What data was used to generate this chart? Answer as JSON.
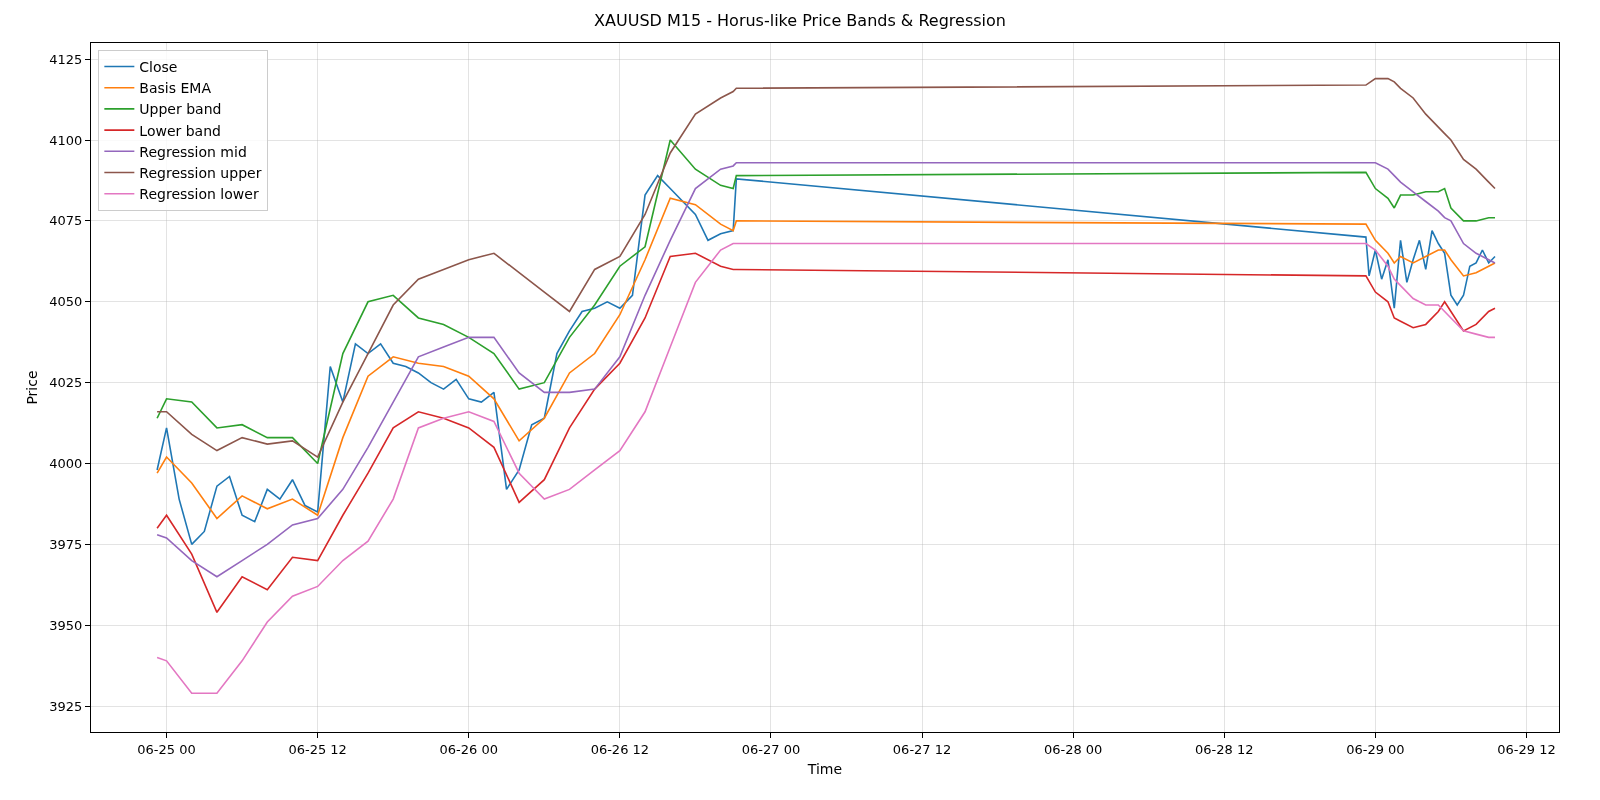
{
  "chart_data": {
    "type": "line",
    "title": "XAUUSD M15 - Horus-like Price Bands & Regression",
    "xlabel": "Time",
    "ylabel": "Price",
    "x": [
      "--06-24T23:15",
      "--06-25T00:00",
      "--06-25T02:00",
      "--06-25T04:00",
      "--06-25T06:00",
      "--06-25T08:00",
      "--06-25T10:00",
      "--06-25T12:00",
      "--06-25T14:00",
      "--06-25T16:00",
      "--06-25T18:00",
      "--06-25T20:00",
      "--06-25T22:00",
      "--06-26T00:00",
      "--06-26T02:00",
      "--06-26T04:00",
      "--06-26T06:00",
      "--06-26T08:00",
      "--06-26T10:00",
      "--06-26T12:00",
      "--06-26T14:00",
      "--06-26T16:00",
      "--06-26T18:00",
      "--06-26T20:00",
      "--06-26T21:00",
      "--06-26T21:15",
      "--06-28T23:15",
      "--06-29T00:00",
      "--06-29T01:00",
      "--06-29T01:30",
      "--06-29T02:00",
      "--06-29T03:00",
      "--06-29T04:00",
      "--06-29T05:00",
      "--06-29T05:30",
      "--06-29T06:00",
      "--06-29T07:00",
      "--06-29T08:00",
      "--06-29T09:00",
      "--06-29T09:30"
    ],
    "series": [
      {
        "name": "Close",
        "color": "#1f77b4",
        "x": [
          "--06-24T23:15",
          "--06-25T00:00",
          "--06-25T01:00",
          "--06-25T02:00",
          "--06-25T03:00",
          "--06-25T04:00",
          "--06-25T05:00",
          "--06-25T06:00",
          "--06-25T07:00",
          "--06-25T08:00",
          "--06-25T09:00",
          "--06-25T10:00",
          "--06-25T11:00",
          "--06-25T12:00",
          "--06-25T13:00",
          "--06-25T14:00",
          "--06-25T15:00",
          "--06-25T16:00",
          "--06-25T17:00",
          "--06-25T18:00",
          "--06-25T19:00",
          "--06-25T20:00",
          "--06-25T21:00",
          "--06-25T22:00",
          "--06-25T23:00",
          "--06-26T00:00",
          "--06-26T01:00",
          "--06-26T02:00",
          "--06-26T03:00",
          "--06-26T04:00",
          "--06-26T05:00",
          "--06-26T06:00",
          "--06-26T07:00",
          "--06-26T08:00",
          "--06-26T09:00",
          "--06-26T10:00",
          "--06-26T11:00",
          "--06-26T12:00",
          "--06-26T13:00",
          "--06-26T14:00",
          "--06-26T15:00",
          "--06-26T16:00",
          "--06-26T17:00",
          "--06-26T18:00",
          "--06-26T19:00",
          "--06-26T20:00",
          "--06-26T21:00",
          "--06-26T21:15",
          "--06-28T23:15",
          "--06-28T23:30",
          "--06-29T00:00",
          "--06-29T00:30",
          "--06-29T01:00",
          "--06-29T01:30",
          "--06-29T02:00",
          "--06-29T02:30",
          "--06-29T03:00",
          "--06-29T03:30",
          "--06-29T04:00",
          "--06-29T04:30",
          "--06-29T05:00",
          "--06-29T05:30",
          "--06-29T06:00",
          "--06-29T06:30",
          "--06-29T07:00",
          "--06-29T07:30",
          "--06-29T08:00",
          "--06-29T08:30",
          "--06-29T09:00",
          "--06-29T09:30"
        ],
        "values": [
          3998,
          4011,
          3989,
          3975,
          3979,
          3993,
          3996,
          3984,
          3982,
          3992,
          3989,
          3995,
          3987,
          3985,
          4030,
          4019,
          4037,
          4034,
          4037,
          4031,
          4030,
          4028,
          4025,
          4023,
          4026,
          4020,
          4019,
          4022,
          3992,
          3998,
          4012,
          4014,
          4034,
          4041,
          4047,
          4048,
          4050,
          4048,
          4052,
          4083,
          4089,
          4085,
          4081,
          4077,
          4069,
          4071,
          4072,
          4088,
          4070,
          4058,
          4066,
          4057,
          4063,
          4048,
          4069,
          4056,
          4063,
          4069,
          4060,
          4072,
          4068,
          4065,
          4052,
          4049,
          4052,
          4061,
          4062,
          4066,
          4062,
          4064
        ]
      },
      {
        "name": "Basis EMA",
        "color": "#ff7f0e",
        "values": [
          3997,
          4002,
          3994,
          3983,
          3990,
          3986,
          3989,
          3984,
          4008,
          4027,
          4033,
          4031,
          4030,
          4027,
          4020,
          4007,
          4014,
          4028,
          4034,
          4046,
          4063,
          4082,
          4080,
          4074,
          4072,
          4075,
          4074,
          4069,
          4065,
          4062,
          4064,
          4062,
          4064,
          4066,
          4066,
          4063,
          4058,
          4059,
          4061,
          4062
        ]
      },
      {
        "name": "Upper band",
        "color": "#2ca02c",
        "values": [
          4014,
          4020,
          4019,
          4011,
          4012,
          4008,
          4008,
          4000,
          4034,
          4050,
          4052,
          4045,
          4043,
          4039,
          4034,
          4023,
          4025,
          4039,
          4049,
          4061,
          4067,
          4100,
          4091,
          4086,
          4085,
          4089,
          4090,
          4085,
          4082,
          4079,
          4083,
          4083,
          4084,
          4084,
          4085,
          4079,
          4075,
          4075,
          4076,
          4076
        ]
      },
      {
        "name": "Lower band",
        "color": "#d62728",
        "values": [
          3980,
          3984,
          3972,
          3954,
          3965,
          3961,
          3971,
          3970,
          3984,
          3997,
          4011,
          4016,
          4014,
          4011,
          4005,
          3988,
          3995,
          4011,
          4023,
          4031,
          4045,
          4064,
          4065,
          4061,
          4060,
          4060,
          4058,
          4053,
          4050,
          4045,
          4044,
          4042,
          4043,
          4047,
          4050,
          4047,
          4041,
          4043,
          4047,
          4048
        ]
      },
      {
        "name": "Regression mid",
        "color": "#9467bd",
        "values": [
          3978,
          3977,
          3970,
          3965,
          3970,
          3975,
          3981,
          3983,
          3992,
          4005,
          4019,
          4033,
          4036,
          4039,
          4039,
          4028,
          4022,
          4022,
          4023,
          4033,
          4052,
          4069,
          4085,
          4091,
          4092,
          4093,
          4093,
          4093,
          4091,
          4089,
          4087,
          4084,
          4081,
          4078,
          4076,
          4075,
          4068,
          4065,
          4063,
          4062
        ]
      },
      {
        "name": "Regression upper",
        "color": "#8c564b",
        "values": [
          4016,
          4016,
          4009,
          4004,
          4008,
          4006,
          4007,
          4002,
          4019,
          4034,
          4049,
          4057,
          4060,
          4063,
          4065,
          4059,
          4053,
          4047,
          4060,
          4064,
          4077,
          4096,
          4108,
          4113,
          4115,
          4116,
          4117,
          4119,
          4119,
          4118,
          4116,
          4113,
          4108,
          4104,
          4102,
          4100,
          4094,
          4091,
          4087,
          4085
        ]
      },
      {
        "name": "Regression lower",
        "color": "#e377c2",
        "values": [
          3940,
          3939,
          3929,
          3929,
          3939,
          3951,
          3959,
          3962,
          3970,
          3976,
          3989,
          4011,
          4014,
          4016,
          4013,
          3997,
          3989,
          3992,
          3998,
          4004,
          4016,
          4036,
          4056,
          4066,
          4068,
          4068,
          4068,
          4066,
          4061,
          4057,
          4055,
          4051,
          4049,
          4049,
          4047,
          4045,
          4041,
          4040,
          4039,
          4039
        ]
      }
    ],
    "xlim": [
      "--06-24T18:00",
      "--06-29T14:35"
    ],
    "xticks": [
      {
        "value": "--06-25T00:00",
        "label": "06-25 00"
      },
      {
        "value": "--06-25T12:00",
        "label": "06-25 12"
      },
      {
        "value": "--06-26T00:00",
        "label": "06-26 00"
      },
      {
        "value": "--06-26T12:00",
        "label": "06-26 12"
      },
      {
        "value": "--06-27T00:00",
        "label": "06-27 00"
      },
      {
        "value": "--06-27T12:00",
        "label": "06-27 12"
      },
      {
        "value": "--06-28T00:00",
        "label": "06-28 00"
      },
      {
        "value": "--06-28T12:00",
        "label": "06-28 12"
      },
      {
        "value": "--06-29T00:00",
        "label": "06-29 00"
      },
      {
        "value": "--06-29T12:00",
        "label": "06-29 12"
      }
    ],
    "ylim": [
      3917,
      4130
    ],
    "yticks": [
      3925,
      3950,
      3975,
      4000,
      4025,
      4050,
      4075,
      4100,
      4125
    ],
    "grid": true,
    "legend": "top left",
    "marker": "none",
    "line_style": "solid"
  }
}
